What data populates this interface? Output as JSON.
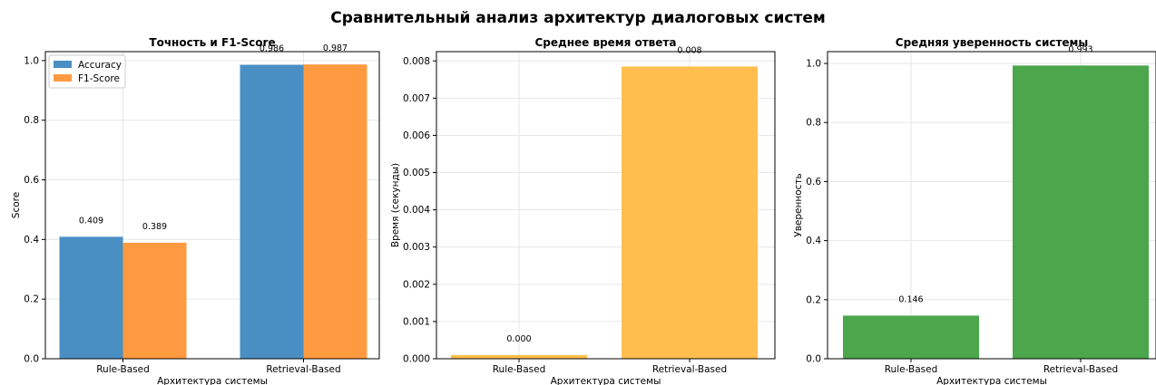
{
  "figure": {
    "title": "Сравнительный анализ архитектур диалоговых систем"
  },
  "chart_data": [
    {
      "type": "bar",
      "title": "Точность и F1-Score",
      "xlabel": "Архитектура системы",
      "ylabel": "Score",
      "categories": [
        "Rule-Based",
        "Retrieval-Based"
      ],
      "series": [
        {
          "name": "Accuracy",
          "values": [
            0.409,
            0.986
          ],
          "labels": [
            "0.409",
            "0.986"
          ],
          "color": "#4a8fc4"
        },
        {
          "name": "F1-Score",
          "values": [
            0.389,
            0.987
          ],
          "labels": [
            "0.389",
            "0.987"
          ],
          "color": "#ff9a40"
        }
      ],
      "ylim": [
        0,
        1.03
      ],
      "yticks": [
        "0.0",
        "0.2",
        "0.4",
        "0.6",
        "0.8",
        "1.0"
      ],
      "grid": true,
      "legend": "top-left"
    },
    {
      "type": "bar",
      "title": "Среднее время ответа",
      "xlabel": "Архитектура системы",
      "ylabel": "Время (секунды)",
      "categories": [
        "Rule-Based",
        "Retrieval-Based"
      ],
      "series": [
        {
          "values": [
            0.0001,
            0.00785
          ],
          "labels": [
            "0.000",
            "0.008"
          ],
          "color": "#ffbe4d"
        }
      ],
      "ylim": [
        0,
        0.00825
      ],
      "yticks": [
        "0.000",
        "0.001",
        "0.002",
        "0.003",
        "0.004",
        "0.005",
        "0.006",
        "0.007",
        "0.008"
      ],
      "grid": true
    },
    {
      "type": "bar",
      "title": "Средняя уверенность системы",
      "xlabel": "Архитектура системы",
      "ylabel": "Уверенность",
      "categories": [
        "Rule-Based",
        "Retrieval-Based"
      ],
      "series": [
        {
          "values": [
            0.146,
            0.993
          ],
          "labels": [
            "0.146",
            "0.993"
          ],
          "color": "#4ca64c"
        }
      ],
      "ylim": [
        0,
        1.04
      ],
      "yticks": [
        "0.0",
        "0.2",
        "0.4",
        "0.6",
        "0.8",
        "1.0"
      ],
      "grid": true
    }
  ]
}
